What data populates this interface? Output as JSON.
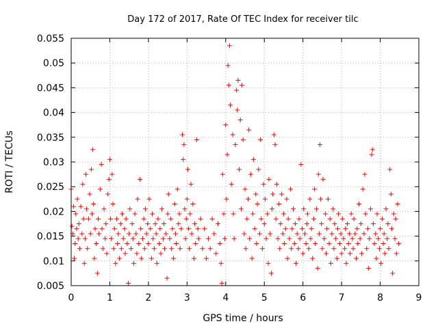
{
  "chart_data": {
    "type": "scatter",
    "title": "Day 172 of 2017, Rate Of TEC Index for receiver tilc",
    "xlabel": "GPS time / hours",
    "ylabel": "ROTI / TECUs",
    "xlim": [
      0,
      9
    ],
    "ylim": [
      0.005,
      0.055
    ],
    "x_ticks": [
      "0",
      "1",
      "2",
      "3",
      "4",
      "5",
      "6",
      "7",
      "8",
      "9"
    ],
    "y_ticks": [
      "0.005",
      "0.01",
      "0.015",
      "0.02",
      "0.025",
      "0.03",
      "0.035",
      "0.04",
      "0.045",
      "0.05",
      "0.055"
    ],
    "grid": true,
    "marker": "+",
    "color": "#ff0000",
    "points": [
      [
        0.0,
        0.0245
      ],
      [
        0.02,
        0.017
      ],
      [
        0.04,
        0.0155
      ],
      [
        0.06,
        0.021
      ],
      [
        0.08,
        0.0105
      ],
      [
        0.1,
        0.0135
      ],
      [
        0.12,
        0.0195
      ],
      [
        0.14,
        0.0165
      ],
      [
        0.16,
        0.0225
      ],
      [
        0.18,
        0.0145
      ],
      [
        0.2,
        0.0175
      ],
      [
        0.22,
        0.0125
      ],
      [
        0.25,
        0.021
      ],
      [
        0.28,
        0.0155
      ],
      [
        0.3,
        0.0255
      ],
      [
        0.32,
        0.0185
      ],
      [
        0.34,
        0.0095
      ],
      [
        0.36,
        0.0145
      ],
      [
        0.38,
        0.0275
      ],
      [
        0.4,
        0.0205
      ],
      [
        0.42,
        0.0125
      ],
      [
        0.45,
        0.0185
      ],
      [
        0.48,
        0.0235
      ],
      [
        0.5,
        0.0155
      ],
      [
        0.52,
        0.0285
      ],
      [
        0.54,
        0.0195
      ],
      [
        0.56,
        0.0325
      ],
      [
        0.58,
        0.0215
      ],
      [
        0.6,
        0.0105
      ],
      [
        0.62,
        0.0165
      ],
      [
        0.65,
        0.0135
      ],
      [
        0.68,
        0.0075
      ],
      [
        0.7,
        0.0185
      ],
      [
        0.72,
        0.0155
      ],
      [
        0.75,
        0.0245
      ],
      [
        0.78,
        0.0295
      ],
      [
        0.8,
        0.0165
      ],
      [
        0.82,
        0.0125
      ],
      [
        0.85,
        0.0205
      ],
      [
        0.88,
        0.0145
      ],
      [
        0.9,
        0.0175
      ],
      [
        0.92,
        0.0115
      ],
      [
        0.95,
        0.0235
      ],
      [
        0.98,
        0.0265
      ],
      [
        1.0,
        0.0305
      ],
      [
        1.02,
        0.0185
      ],
      [
        1.04,
        0.0145
      ],
      [
        1.06,
        0.0275
      ],
      [
        1.08,
        0.0215
      ],
      [
        1.1,
        0.0125
      ],
      [
        1.12,
        0.0165
      ],
      [
        1.15,
        0.0095
      ],
      [
        1.18,
        0.0185
      ],
      [
        1.2,
        0.0135
      ],
      [
        1.22,
        0.0155
      ],
      [
        1.25,
        0.0105
      ],
      [
        1.28,
        0.0175
      ],
      [
        1.3,
        0.0125
      ],
      [
        1.32,
        0.0195
      ],
      [
        1.35,
        0.0145
      ],
      [
        1.38,
        0.0165
      ],
      [
        1.4,
        0.0115
      ],
      [
        1.42,
        0.0185
      ],
      [
        1.45,
        0.0135
      ],
      [
        1.48,
        0.0055
      ],
      [
        1.5,
        0.0155
      ],
      [
        1.52,
        0.0205
      ],
      [
        1.55,
        0.0125
      ],
      [
        1.58,
        0.0175
      ],
      [
        1.6,
        0.0145
      ],
      [
        1.62,
        0.0095
      ],
      [
        1.65,
        0.0195
      ],
      [
        1.68,
        0.0155
      ],
      [
        1.7,
        0.0115
      ],
      [
        1.72,
        0.0225
      ],
      [
        1.75,
        0.0135
      ],
      [
        1.78,
        0.0265
      ],
      [
        1.8,
        0.0165
      ],
      [
        1.82,
        0.0105
      ],
      [
        1.85,
        0.0145
      ],
      [
        1.88,
        0.0185
      ],
      [
        1.9,
        0.0125
      ],
      [
        1.92,
        0.0205
      ],
      [
        1.95,
        0.0155
      ],
      [
        1.98,
        0.0175
      ],
      [
        2.0,
        0.0135
      ],
      [
        2.02,
        0.0225
      ],
      [
        2.05,
        0.0165
      ],
      [
        2.08,
        0.0105
      ],
      [
        2.1,
        0.0195
      ],
      [
        2.12,
        0.0145
      ],
      [
        2.15,
        0.0125
      ],
      [
        2.18,
        0.0175
      ],
      [
        2.2,
        0.0155
      ],
      [
        2.22,
        0.0095
      ],
      [
        2.25,
        0.0185
      ],
      [
        2.28,
        0.0135
      ],
      [
        2.3,
        0.0165
      ],
      [
        2.32,
        0.0115
      ],
      [
        2.35,
        0.0205
      ],
      [
        2.38,
        0.0145
      ],
      [
        2.4,
        0.0175
      ],
      [
        2.42,
        0.0125
      ],
      [
        2.45,
        0.0155
      ],
      [
        2.48,
        0.0065
      ],
      [
        2.5,
        0.0195
      ],
      [
        2.52,
        0.0235
      ],
      [
        2.55,
        0.0145
      ],
      [
        2.58,
        0.0185
      ],
      [
        2.6,
        0.0125
      ],
      [
        2.62,
        0.0165
      ],
      [
        2.65,
        0.0105
      ],
      [
        2.68,
        0.0215
      ],
      [
        2.7,
        0.0155
      ],
      [
        2.72,
        0.0135
      ],
      [
        2.75,
        0.0245
      ],
      [
        2.78,
        0.0175
      ],
      [
        2.8,
        0.0195
      ],
      [
        2.82,
        0.0125
      ],
      [
        2.85,
        0.0165
      ],
      [
        2.88,
        0.0355
      ],
      [
        2.9,
        0.0305
      ],
      [
        2.92,
        0.0335
      ],
      [
        2.94,
        0.0205
      ],
      [
        2.96,
        0.0145
      ],
      [
        2.98,
        0.0185
      ],
      [
        3.0,
        0.0225
      ],
      [
        3.02,
        0.0285
      ],
      [
        3.04,
        0.0165
      ],
      [
        3.06,
        0.0125
      ],
      [
        3.08,
        0.0195
      ],
      [
        3.1,
        0.0255
      ],
      [
        3.12,
        0.0155
      ],
      [
        3.15,
        0.0215
      ],
      [
        3.18,
        0.0105
      ],
      [
        3.2,
        0.0175
      ],
      [
        3.22,
        0.0135
      ],
      [
        3.25,
        0.0345
      ],
      [
        3.28,
        0.0165
      ],
      [
        3.3,
        0.0145
      ],
      [
        3.35,
        0.0185
      ],
      [
        3.4,
        0.0125
      ],
      [
        3.45,
        0.0165
      ],
      [
        3.5,
        0.0105
      ],
      [
        3.55,
        0.0145
      ],
      [
        3.6,
        0.0125
      ],
      [
        3.65,
        0.0185
      ],
      [
        3.7,
        0.0155
      ],
      [
        3.75,
        0.0115
      ],
      [
        3.8,
        0.0175
      ],
      [
        3.85,
        0.0135
      ],
      [
        3.88,
        0.0095
      ],
      [
        3.9,
        0.0055
      ],
      [
        3.92,
        0.0275
      ],
      [
        3.95,
        0.0195
      ],
      [
        3.98,
        0.0145
      ],
      [
        4.0,
        0.0375
      ],
      [
        4.02,
        0.0225
      ],
      [
        4.04,
        0.0315
      ],
      [
        4.06,
        0.0495
      ],
      [
        4.08,
        0.0455
      ],
      [
        4.1,
        0.0535
      ],
      [
        4.12,
        0.0415
      ],
      [
        4.15,
        0.0255
      ],
      [
        4.18,
        0.0355
      ],
      [
        4.2,
        0.0195
      ],
      [
        4.22,
        0.0145
      ],
      [
        4.25,
        0.0335
      ],
      [
        4.28,
        0.0445
      ],
      [
        4.3,
        0.0405
      ],
      [
        4.32,
        0.0465
      ],
      [
        4.35,
        0.0285
      ],
      [
        4.38,
        0.0385
      ],
      [
        4.4,
        0.0205
      ],
      [
        4.42,
        0.0455
      ],
      [
        4.45,
        0.0345
      ],
      [
        4.48,
        0.0155
      ],
      [
        4.5,
        0.0245
      ],
      [
        4.52,
        0.0125
      ],
      [
        4.55,
        0.0185
      ],
      [
        4.58,
        0.0225
      ],
      [
        4.6,
        0.0365
      ],
      [
        4.62,
        0.0145
      ],
      [
        4.65,
        0.0275
      ],
      [
        4.68,
        0.0105
      ],
      [
        4.7,
        0.0195
      ],
      [
        4.72,
        0.0305
      ],
      [
        4.75,
        0.0165
      ],
      [
        4.78,
        0.0235
      ],
      [
        4.8,
        0.0135
      ],
      [
        4.82,
        0.0215
      ],
      [
        4.85,
        0.0285
      ],
      [
        4.88,
        0.0155
      ],
      [
        4.9,
        0.0345
      ],
      [
        4.92,
        0.0185
      ],
      [
        4.95,
        0.0125
      ],
      [
        4.98,
        0.0255
      ],
      [
        5.0,
        0.0175
      ],
      [
        5.02,
        0.0225
      ],
      [
        5.05,
        0.0145
      ],
      [
        5.08,
        0.0195
      ],
      [
        5.1,
        0.0095
      ],
      [
        5.12,
        0.0265
      ],
      [
        5.15,
        0.0155
      ],
      [
        5.18,
        0.0075
      ],
      [
        5.2,
        0.0205
      ],
      [
        5.22,
        0.0235
      ],
      [
        5.25,
        0.0355
      ],
      [
        5.28,
        0.0335
      ],
      [
        5.3,
        0.0185
      ],
      [
        5.32,
        0.0255
      ],
      [
        5.35,
        0.0145
      ],
      [
        5.38,
        0.0215
      ],
      [
        5.4,
        0.0125
      ],
      [
        5.42,
        0.0175
      ],
      [
        5.45,
        0.0235
      ],
      [
        5.48,
        0.0155
      ],
      [
        5.5,
        0.0195
      ],
      [
        5.52,
        0.0135
      ],
      [
        5.55,
        0.0165
      ],
      [
        5.58,
        0.0225
      ],
      [
        5.6,
        0.0105
      ],
      [
        5.62,
        0.0185
      ],
      [
        5.65,
        0.0145
      ],
      [
        5.68,
        0.0245
      ],
      [
        5.7,
        0.0125
      ],
      [
        5.72,
        0.0165
      ],
      [
        5.75,
        0.0205
      ],
      [
        5.78,
        0.0135
      ],
      [
        5.8,
        0.0175
      ],
      [
        5.82,
        0.0095
      ],
      [
        5.85,
        0.0155
      ],
      [
        5.88,
        0.0125
      ],
      [
        5.9,
        0.0185
      ],
      [
        5.92,
        0.0145
      ],
      [
        5.95,
        0.0295
      ],
      [
        5.98,
        0.0165
      ],
      [
        6.0,
        0.0115
      ],
      [
        6.02,
        0.0205
      ],
      [
        6.05,
        0.0155
      ],
      [
        6.08,
        0.0135
      ],
      [
        6.1,
        0.0175
      ],
      [
        6.12,
        0.0195
      ],
      [
        6.15,
        0.0125
      ],
      [
        6.18,
        0.0225
      ],
      [
        6.2,
        0.0145
      ],
      [
        6.22,
        0.0165
      ],
      [
        6.25,
        0.0105
      ],
      [
        6.28,
        0.0185
      ],
      [
        6.3,
        0.0245
      ],
      [
        6.32,
        0.0135
      ],
      [
        6.35,
        0.0205
      ],
      [
        6.38,
        0.0085
      ],
      [
        6.4,
        0.0275
      ],
      [
        6.42,
        0.0155
      ],
      [
        6.44,
        0.0335
      ],
      [
        6.46,
        0.0225
      ],
      [
        6.48,
        0.0175
      ],
      [
        6.5,
        0.0125
      ],
      [
        6.52,
        0.0265
      ],
      [
        6.55,
        0.0145
      ],
      [
        6.58,
        0.0195
      ],
      [
        6.6,
        0.0115
      ],
      [
        6.62,
        0.0165
      ],
      [
        6.65,
        0.0225
      ],
      [
        6.68,
        0.0135
      ],
      [
        6.7,
        0.0185
      ],
      [
        6.72,
        0.0095
      ],
      [
        6.75,
        0.0155
      ],
      [
        6.78,
        0.0205
      ],
      [
        6.8,
        0.0125
      ],
      [
        6.82,
        0.0175
      ],
      [
        6.85,
        0.0145
      ],
      [
        6.88,
        0.0105
      ],
      [
        6.9,
        0.0165
      ],
      [
        6.92,
        0.0195
      ],
      [
        6.95,
        0.0135
      ],
      [
        6.98,
        0.0155
      ],
      [
        7.0,
        0.0115
      ],
      [
        7.02,
        0.0185
      ],
      [
        7.05,
        0.0145
      ],
      [
        7.08,
        0.0125
      ],
      [
        7.1,
        0.0165
      ],
      [
        7.12,
        0.0095
      ],
      [
        7.15,
        0.0175
      ],
      [
        7.18,
        0.0135
      ],
      [
        7.2,
        0.0155
      ],
      [
        7.22,
        0.0115
      ],
      [
        7.25,
        0.0195
      ],
      [
        7.28,
        0.0145
      ],
      [
        7.3,
        0.0125
      ],
      [
        7.32,
        0.0185
      ],
      [
        7.35,
        0.0155
      ],
      [
        7.38,
        0.0105
      ],
      [
        7.4,
        0.0165
      ],
      [
        7.42,
        0.0135
      ],
      [
        7.45,
        0.0215
      ],
      [
        7.48,
        0.0145
      ],
      [
        7.5,
        0.0175
      ],
      [
        7.52,
        0.0115
      ],
      [
        7.55,
        0.0245
      ],
      [
        7.58,
        0.0155
      ],
      [
        7.6,
        0.0275
      ],
      [
        7.62,
        0.0195
      ],
      [
        7.65,
        0.0125
      ],
      [
        7.68,
        0.0165
      ],
      [
        7.7,
        0.0085
      ],
      [
        7.72,
        0.0145
      ],
      [
        7.75,
        0.0205
      ],
      [
        7.78,
        0.0315
      ],
      [
        7.8,
        0.0325
      ],
      [
        7.82,
        0.0175
      ],
      [
        7.85,
        0.0135
      ],
      [
        7.88,
        0.0155
      ],
      [
        7.9,
        0.0105
      ],
      [
        7.92,
        0.0195
      ],
      [
        7.95,
        0.0145
      ],
      [
        7.98,
        0.0125
      ],
      [
        8.0,
        0.0165
      ],
      [
        8.02,
        0.0095
      ],
      [
        8.05,
        0.0185
      ],
      [
        8.08,
        0.0135
      ],
      [
        8.1,
        0.0155
      ],
      [
        8.12,
        0.0115
      ],
      [
        8.15,
        0.0205
      ],
      [
        8.18,
        0.0145
      ],
      [
        8.2,
        0.0175
      ],
      [
        8.22,
        0.0125
      ],
      [
        8.25,
        0.0285
      ],
      [
        8.28,
        0.0235
      ],
      [
        8.3,
        0.0165
      ],
      [
        8.32,
        0.0075
      ],
      [
        8.35,
        0.0195
      ],
      [
        8.38,
        0.0145
      ],
      [
        8.4,
        0.0185
      ],
      [
        8.42,
        0.0115
      ],
      [
        8.45,
        0.0215
      ],
      [
        8.48,
        0.0135
      ]
    ]
  }
}
